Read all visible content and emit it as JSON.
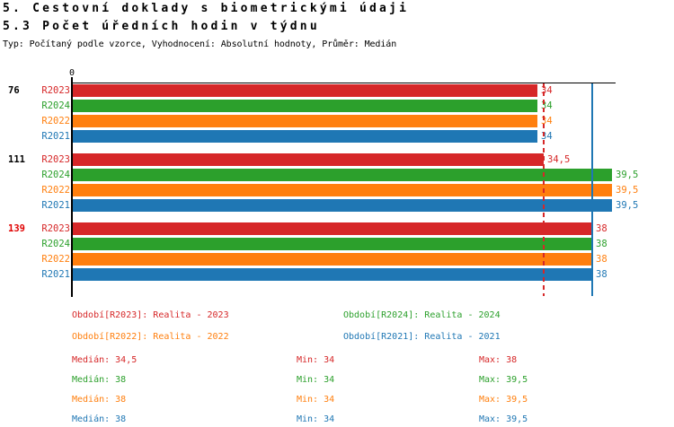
{
  "header": {
    "title_line1": "5. Cestovní doklady s biometrickými údaji",
    "title_line2": "5.3 Počet úředních hodin v týdnu",
    "meta_line": "Typ: Počítaný podle vzorce, Vyhodnocení: Absolutní hodnoty, Průměr: Medián"
  },
  "chart_data": {
    "type": "bar",
    "orientation": "horizontal",
    "title": "5.3 Počet úředních hodin v týdnu",
    "x_axis": {
      "position": "top",
      "tick_labels": [
        "0"
      ],
      "xlim": [
        0,
        39.8
      ],
      "grid": false
    },
    "categories": [
      "76",
      "111",
      "139"
    ],
    "category_label_colors": [
      "#000000",
      "#000000",
      "#e00000"
    ],
    "series": [
      {
        "name": "R2023",
        "color": "#d62728",
        "values": [
          34,
          34.5,
          38
        ],
        "value_labels": [
          "34",
          "34,5",
          "38"
        ]
      },
      {
        "name": "R2024",
        "color": "#2ca02c",
        "values": [
          34,
          39.5,
          38
        ],
        "value_labels": [
          "34",
          "39,5",
          "38"
        ]
      },
      {
        "name": "R2022",
        "color": "#ff7f0e",
        "values": [
          34,
          39.5,
          38
        ],
        "value_labels": [
          "34",
          "39,5",
          "38"
        ]
      },
      {
        "name": "R2021",
        "color": "#1f77b4",
        "values": [
          34,
          39.5,
          38
        ],
        "value_labels": [
          "34",
          "39,5",
          "38"
        ]
      }
    ],
    "reference_lines": [
      {
        "value": 34.5,
        "color": "#d62728",
        "style": "dashed"
      },
      {
        "value": 38,
        "color": "#1f77b4",
        "style": "solid"
      }
    ]
  },
  "legend": {
    "items": [
      {
        "label": "Období[R2023]: Realita - 2023",
        "color": "#d62728"
      },
      {
        "label": "Období[R2024]: Realita - 2024",
        "color": "#2ca02c"
      },
      {
        "label": "Období[R2022]: Realita - 2022",
        "color": "#ff7f0e"
      },
      {
        "label": "Období[R2021]: Realita - 2021",
        "color": "#1f77b4"
      }
    ]
  },
  "stats": {
    "rows": [
      {
        "color": "#d62728",
        "median": "Medián: 34,5",
        "min": "Min: 34",
        "max": "Max: 38"
      },
      {
        "color": "#2ca02c",
        "median": "Medián: 38",
        "min": "Min: 34",
        "max": "Max: 39,5"
      },
      {
        "color": "#ff7f0e",
        "median": "Medián: 38",
        "min": "Min: 34",
        "max": "Max: 39,5"
      },
      {
        "color": "#1f77b4",
        "median": "Medián: 38",
        "min": "Min: 34",
        "max": "Max: 39,5"
      }
    ]
  }
}
